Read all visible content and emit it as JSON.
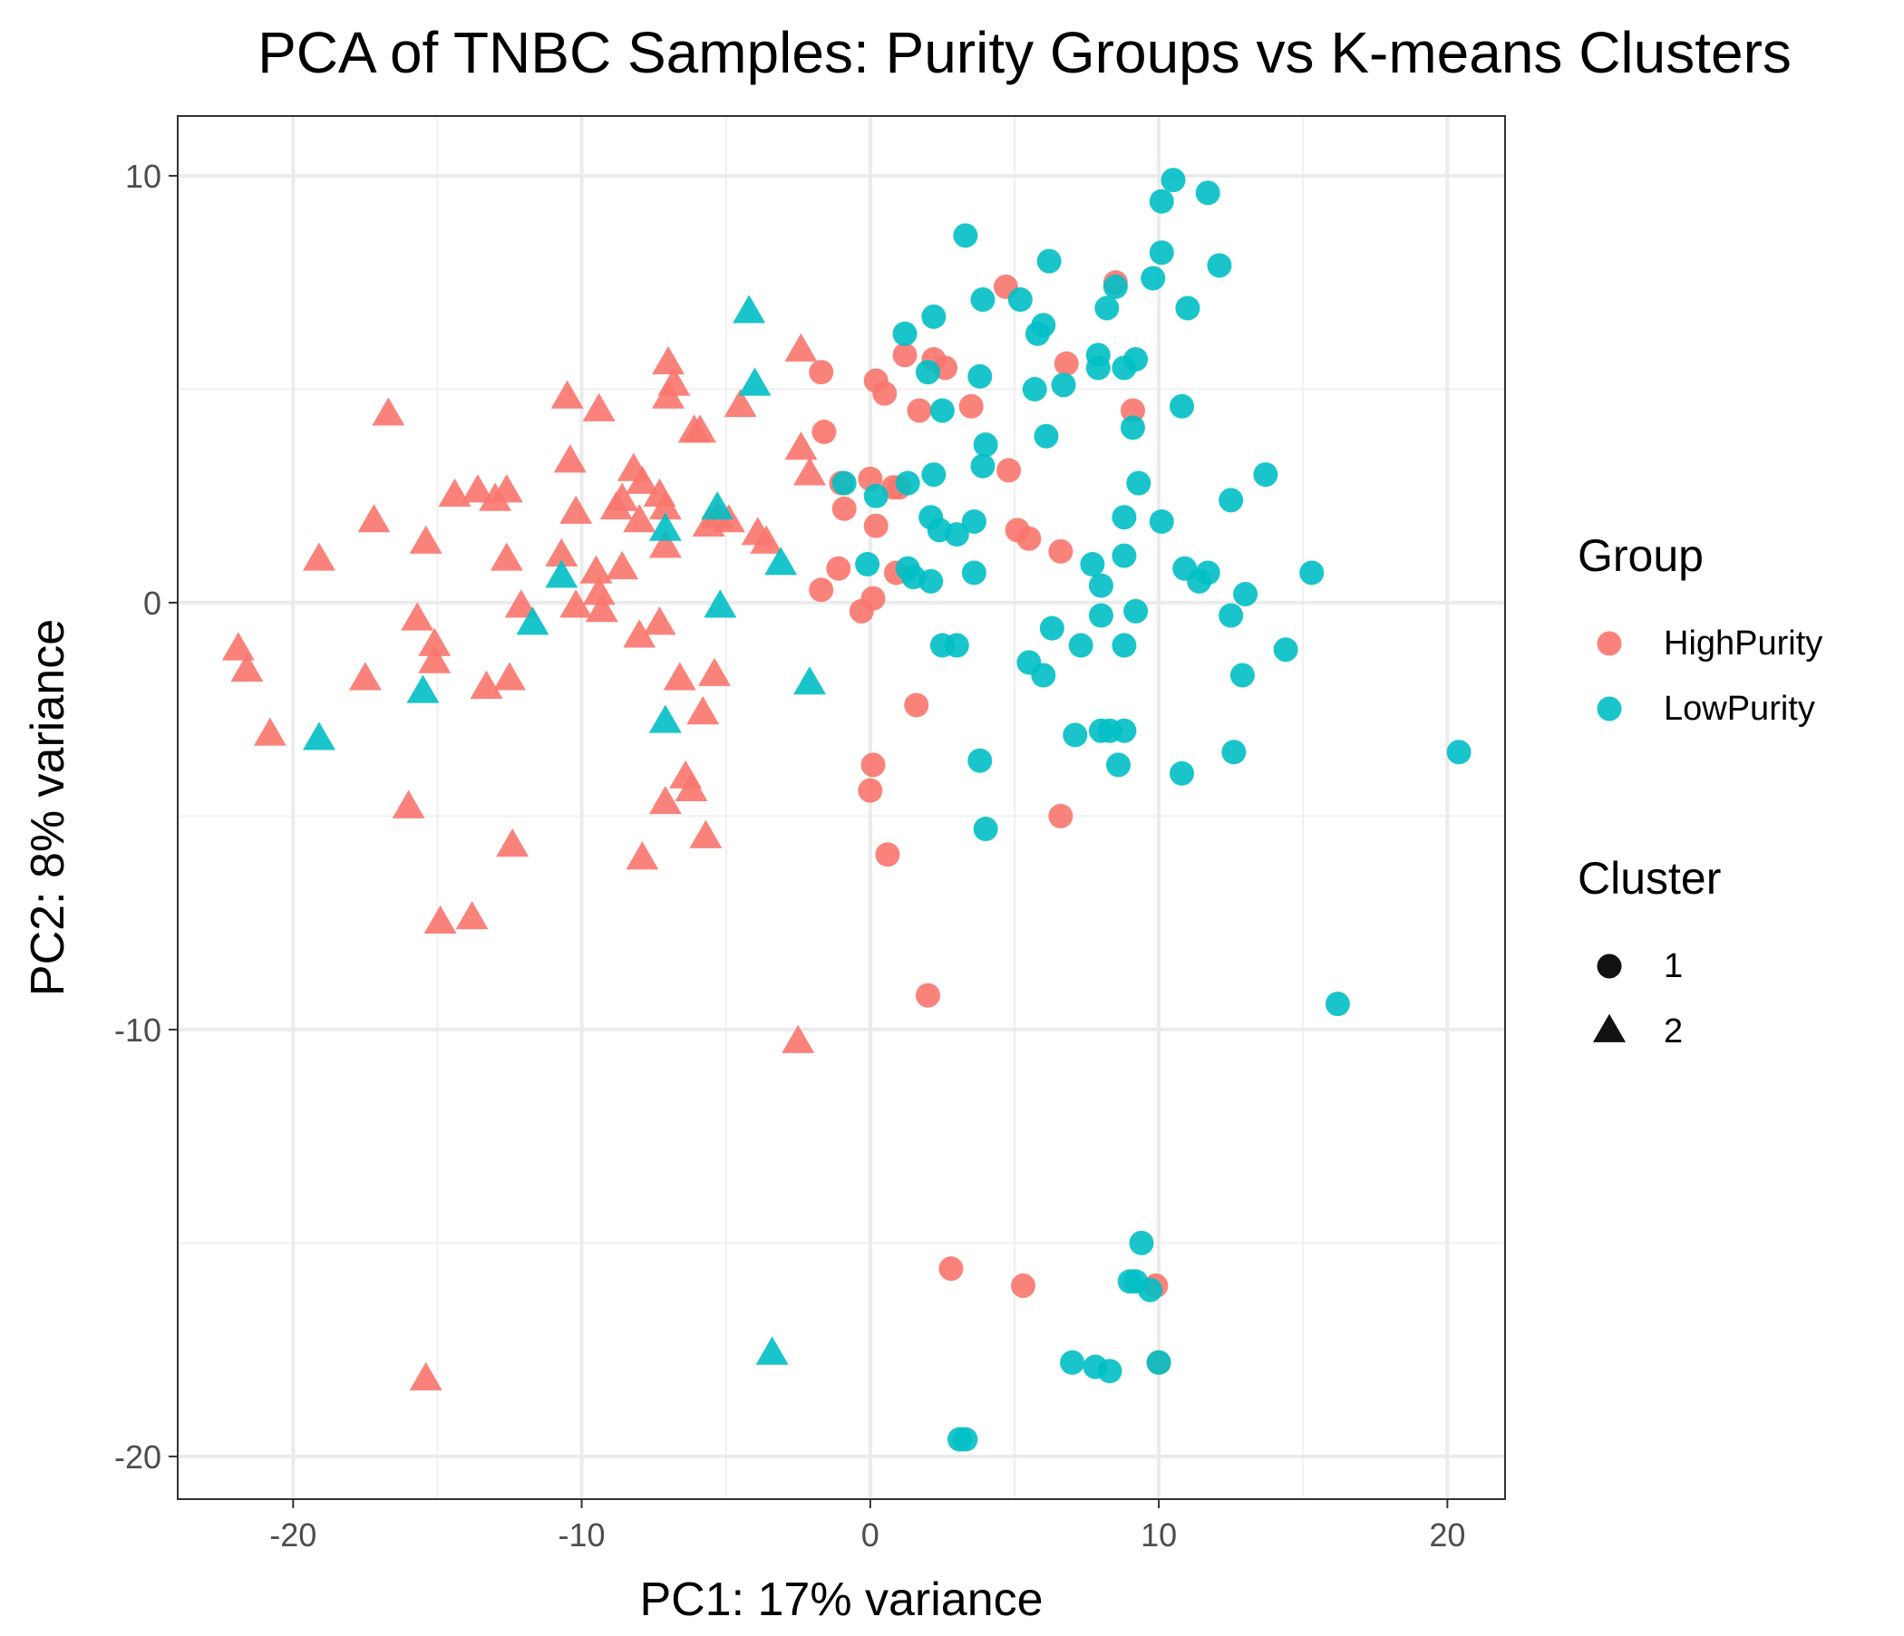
{
  "chart_data": {
    "type": "scatter",
    "title": "PCA of TNBC Samples: Purity Groups vs K-means Clusters",
    "xlabel": "PC1: 17% variance",
    "ylabel": "PC2: 8% variance",
    "xlim": [
      -24,
      22
    ],
    "ylim": [
      -21,
      11.4
    ],
    "xticks": [
      -20,
      -10,
      0,
      10,
      20
    ],
    "yticks": [
      -20,
      -10,
      0,
      10
    ],
    "grid": true,
    "legend": [
      {
        "title": "Group",
        "items": [
          {
            "label": "HighPurity",
            "color": "#F8766D"
          },
          {
            "label": "LowPurity",
            "color": "#00BFC4"
          }
        ]
      },
      {
        "title": "Cluster",
        "items": [
          {
            "label": "1",
            "shape": "circle"
          },
          {
            "label": "2",
            "shape": "triangle"
          }
        ]
      }
    ],
    "legend_position": "right",
    "series": [
      {
        "group": "HighPurity",
        "cluster": "1",
        "points": [
          [
            4.7,
            7.4
          ],
          [
            8.5,
            7.5
          ],
          [
            6.8,
            5.6
          ],
          [
            1.2,
            5.8
          ],
          [
            2.2,
            5.7
          ],
          [
            2.6,
            5.5
          ],
          [
            -1.7,
            5.4
          ],
          [
            0.2,
            5.2
          ],
          [
            0.5,
            4.9
          ],
          [
            3.5,
            4.6
          ],
          [
            1.7,
            4.5
          ],
          [
            9.1,
            4.5
          ],
          [
            -1.6,
            4.0
          ],
          [
            4.8,
            3.1
          ],
          [
            0.8,
            2.7
          ],
          [
            1.0,
            2.7
          ],
          [
            0.0,
            2.9
          ],
          [
            -1.0,
            2.8
          ],
          [
            -0.9,
            2.2
          ],
          [
            5.1,
            1.7
          ],
          [
            5.5,
            1.5
          ],
          [
            0.2,
            1.8
          ],
          [
            6.6,
            1.2
          ],
          [
            -1.1,
            0.8
          ],
          [
            0.9,
            0.7
          ],
          [
            -1.7,
            0.3
          ],
          [
            0.1,
            0.1
          ],
          [
            -0.3,
            -0.2
          ],
          [
            1.6,
            -2.4
          ],
          [
            0.1,
            -3.8
          ],
          [
            0.0,
            -4.4
          ],
          [
            6.6,
            -5.0
          ],
          [
            0.6,
            -5.9
          ],
          [
            2.0,
            -9.2
          ],
          [
            2.8,
            -15.6
          ],
          [
            5.3,
            -16.0
          ],
          [
            9.9,
            -16.0
          ],
          [
            10.0,
            -17.8
          ]
        ]
      },
      {
        "group": "LowPurity",
        "cluster": "1",
        "points": [
          [
            10.5,
            9.9
          ],
          [
            11.7,
            9.6
          ],
          [
            10.1,
            9.4
          ],
          [
            3.3,
            8.6
          ],
          [
            6.2,
            8.0
          ],
          [
            10.1,
            8.2
          ],
          [
            12.1,
            7.9
          ],
          [
            9.8,
            7.6
          ],
          [
            8.5,
            7.4
          ],
          [
            3.9,
            7.1
          ],
          [
            5.2,
            7.1
          ],
          [
            8.2,
            6.9
          ],
          [
            11.0,
            6.9
          ],
          [
            2.2,
            6.7
          ],
          [
            6.0,
            6.5
          ],
          [
            1.2,
            6.3
          ],
          [
            5.8,
            6.3
          ],
          [
            7.9,
            5.8
          ],
          [
            9.2,
            5.7
          ],
          [
            7.9,
            5.5
          ],
          [
            8.8,
            5.5
          ],
          [
            2.0,
            5.4
          ],
          [
            3.8,
            5.3
          ],
          [
            5.7,
            5.0
          ],
          [
            6.7,
            5.1
          ],
          [
            10.8,
            4.6
          ],
          [
            2.5,
            4.5
          ],
          [
            9.1,
            4.1
          ],
          [
            6.1,
            3.9
          ],
          [
            4.0,
            3.7
          ],
          [
            3.9,
            3.2
          ],
          [
            13.7,
            3.0
          ],
          [
            -0.9,
            2.8
          ],
          [
            1.3,
            2.8
          ],
          [
            2.2,
            3.0
          ],
          [
            9.3,
            2.8
          ],
          [
            12.5,
            2.4
          ],
          [
            0.2,
            2.5
          ],
          [
            2.1,
            2.0
          ],
          [
            3.6,
            1.9
          ],
          [
            8.8,
            2.0
          ],
          [
            10.1,
            1.9
          ],
          [
            2.4,
            1.7
          ],
          [
            3.0,
            1.6
          ],
          [
            -0.1,
            0.9
          ],
          [
            7.7,
            0.9
          ],
          [
            8.8,
            1.1
          ],
          [
            1.3,
            0.8
          ],
          [
            1.5,
            0.6
          ],
          [
            2.1,
            0.5
          ],
          [
            3.6,
            0.7
          ],
          [
            10.9,
            0.8
          ],
          [
            11.4,
            0.5
          ],
          [
            11.7,
            0.7
          ],
          [
            15.3,
            0.7
          ],
          [
            8.0,
            0.4
          ],
          [
            13.0,
            0.2
          ],
          [
            8.0,
            -0.3
          ],
          [
            9.2,
            -0.2
          ],
          [
            12.5,
            -0.3
          ],
          [
            6.3,
            -0.6
          ],
          [
            2.5,
            -1.0
          ],
          [
            3.0,
            -1.0
          ],
          [
            7.3,
            -1.0
          ],
          [
            8.8,
            -1.0
          ],
          [
            14.4,
            -1.1
          ],
          [
            5.5,
            -1.4
          ],
          [
            6.0,
            -1.7
          ],
          [
            12.9,
            -1.7
          ],
          [
            8.0,
            -3.0
          ],
          [
            8.3,
            -3.0
          ],
          [
            8.8,
            -3.0
          ],
          [
            7.1,
            -3.1
          ],
          [
            20.4,
            -3.5
          ],
          [
            12.6,
            -3.5
          ],
          [
            3.8,
            -3.7
          ],
          [
            8.6,
            -3.8
          ],
          [
            10.8,
            -4.0
          ],
          [
            4.0,
            -5.3
          ],
          [
            16.2,
            -9.4
          ],
          [
            9.4,
            -15.0
          ],
          [
            9.0,
            -15.9
          ],
          [
            9.2,
            -15.9
          ],
          [
            9.7,
            -16.1
          ],
          [
            7.0,
            -17.8
          ],
          [
            7.8,
            -17.9
          ],
          [
            8.3,
            -18.0
          ],
          [
            10.0,
            -17.8
          ],
          [
            3.1,
            -19.6
          ],
          [
            3.3,
            -19.6
          ]
        ]
      },
      {
        "group": "HighPurity",
        "cluster": "2",
        "points": [
          [
            -2.4,
            5.9
          ],
          [
            -7.0,
            5.6
          ],
          [
            -6.8,
            5.1
          ],
          [
            -7.0,
            4.8
          ],
          [
            -10.5,
            4.8
          ],
          [
            -16.7,
            4.4
          ],
          [
            -9.4,
            4.5
          ],
          [
            -4.5,
            4.6
          ],
          [
            -6.1,
            4.0
          ],
          [
            -5.9,
            4.0
          ],
          [
            -2.4,
            3.6
          ],
          [
            -10.4,
            3.3
          ],
          [
            -2.1,
            3.0
          ],
          [
            -8.2,
            3.1
          ],
          [
            -7.9,
            2.8
          ],
          [
            -13.6,
            2.6
          ],
          [
            -14.4,
            2.5
          ],
          [
            -12.6,
            2.6
          ],
          [
            -13.0,
            2.4
          ],
          [
            -7.3,
            2.5
          ],
          [
            -7.1,
            2.2
          ],
          [
            -8.6,
            2.4
          ],
          [
            -8.8,
            2.2
          ],
          [
            -10.2,
            2.1
          ],
          [
            -17.2,
            1.9
          ],
          [
            -8.0,
            1.9
          ],
          [
            -5.6,
            1.8
          ],
          [
            -4.9,
            1.9
          ],
          [
            -5.3,
            2.0
          ],
          [
            -3.9,
            1.6
          ],
          [
            -3.6,
            1.4
          ],
          [
            -15.4,
            1.4
          ],
          [
            -7.1,
            1.3
          ],
          [
            -10.7,
            1.1
          ],
          [
            -19.1,
            1.0
          ],
          [
            -12.6,
            1.0
          ],
          [
            -9.5,
            0.7
          ],
          [
            -8.6,
            0.8
          ],
          [
            -9.4,
            0.2
          ],
          [
            -12.1,
            -0.1
          ],
          [
            -10.2,
            -0.1
          ],
          [
            -9.3,
            -0.2
          ],
          [
            -15.7,
            -0.4
          ],
          [
            -7.3,
            -0.5
          ],
          [
            -8.0,
            -0.8
          ],
          [
            -15.1,
            -1.0
          ],
          [
            -21.9,
            -1.1
          ],
          [
            -15.1,
            -1.4
          ],
          [
            -21.6,
            -1.6
          ],
          [
            -17.5,
            -1.8
          ],
          [
            -6.6,
            -1.8
          ],
          [
            -5.4,
            -1.7
          ],
          [
            -12.5,
            -1.8
          ],
          [
            -13.3,
            -2.0
          ],
          [
            -5.8,
            -2.6
          ],
          [
            -20.8,
            -3.1
          ],
          [
            -6.4,
            -4.1
          ],
          [
            -6.2,
            -4.4
          ],
          [
            -7.1,
            -4.7
          ],
          [
            -16.0,
            -4.8
          ],
          [
            -5.7,
            -5.5
          ],
          [
            -12.4,
            -5.7
          ],
          [
            -7.9,
            -6.0
          ],
          [
            -13.8,
            -7.4
          ],
          [
            -14.9,
            -7.5
          ],
          [
            -2.5,
            -10.3
          ],
          [
            -15.4,
            -18.2
          ]
        ]
      },
      {
        "group": "LowPurity",
        "cluster": "2",
        "points": [
          [
            -4.2,
            6.8
          ],
          [
            -4.0,
            5.1
          ],
          [
            -5.3,
            2.2
          ],
          [
            -7.1,
            1.7
          ],
          [
            -3.1,
            0.9
          ],
          [
            -10.7,
            0.6
          ],
          [
            -5.2,
            -0.1
          ],
          [
            -11.7,
            -0.5
          ],
          [
            -2.1,
            -1.9
          ],
          [
            -15.5,
            -2.1
          ],
          [
            -7.1,
            -2.8
          ],
          [
            -19.1,
            -3.2
          ],
          [
            -3.4,
            -17.6
          ]
        ]
      }
    ]
  }
}
